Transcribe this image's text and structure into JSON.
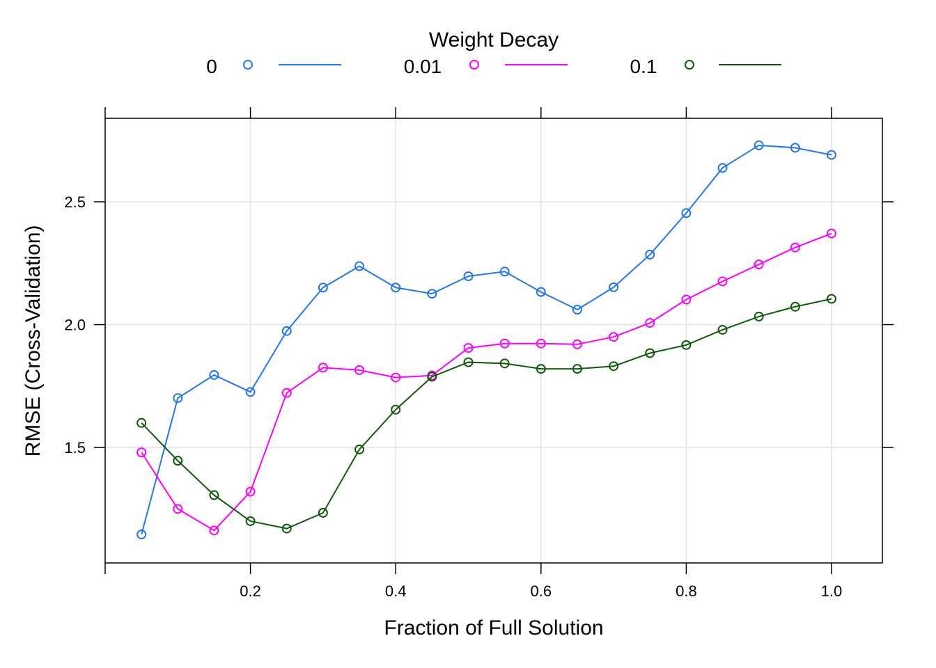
{
  "chart_data": {
    "type": "line",
    "legend": {
      "title": "Weight Decay",
      "position": "top"
    },
    "xlabel": "Fraction of Full Solution",
    "ylabel": "RMSE (Cross-Validation)",
    "xlim": [
      0.0,
      1.07
    ],
    "ylim": [
      1.03,
      2.84
    ],
    "x_ticks": [
      0.2,
      0.4,
      0.6,
      0.8,
      1.0
    ],
    "x_tick_labels": [
      "0.2",
      "0.4",
      "0.6",
      "0.8",
      "1.0"
    ],
    "y_ticks": [
      1.5,
      2.0,
      2.5
    ],
    "y_tick_labels": [
      "1.5",
      "2.0",
      "2.5"
    ],
    "grid": true,
    "x": [
      0.05,
      0.1,
      0.15,
      0.2,
      0.25,
      0.3,
      0.35,
      0.4,
      0.45,
      0.5,
      0.55,
      0.6,
      0.65,
      0.7,
      0.75,
      0.8,
      0.85,
      0.9,
      0.95,
      1.0
    ],
    "series": [
      {
        "name": "0",
        "color": "#1f77f4",
        "values": [
          1.146,
          1.701,
          1.795,
          1.726,
          1.974,
          2.151,
          2.238,
          2.151,
          2.126,
          2.197,
          2.216,
          2.133,
          2.061,
          2.152,
          2.285,
          2.454,
          2.638,
          2.73,
          2.72,
          2.691
        ]
      },
      {
        "name": "0.01",
        "color": "#ff00ff",
        "values": [
          1.48,
          1.25,
          1.162,
          1.32,
          1.722,
          1.825,
          1.815,
          1.785,
          1.793,
          1.905,
          1.923,
          1.923,
          1.92,
          1.95,
          2.007,
          2.102,
          2.176,
          2.245,
          2.314,
          2.371
        ]
      },
      {
        "name": "0.1",
        "color": "#0f5a0a",
        "values": [
          1.6,
          1.446,
          1.306,
          1.2,
          1.17,
          1.234,
          1.492,
          1.654,
          1.788,
          1.847,
          1.842,
          1.82,
          1.82,
          1.831,
          1.884,
          1.917,
          1.979,
          2.033,
          2.073,
          2.105
        ]
      }
    ]
  }
}
